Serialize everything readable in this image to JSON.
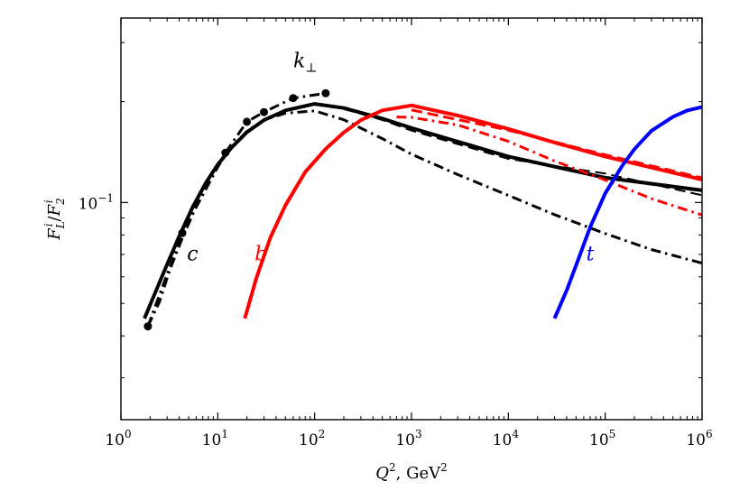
{
  "chart_data": {
    "type": "line",
    "xlabel": {
      "main": "Q",
      "sup": "2",
      "sep": ", GeV",
      "unit_sup": "2"
    },
    "ylabel": {
      "num": "F",
      "num_sub": "L",
      "num_sup": "i",
      "slash": "/",
      "den": "F",
      "den_sub": "2",
      "den_sup": "i"
    },
    "x_scale": "log",
    "y_scale": "log",
    "xlim": [
      1,
      1000000
    ],
    "ylim": [
      0.0225,
      0.355
    ],
    "grid": false,
    "legend": "none",
    "x_ticks": [
      {
        "value": 1,
        "base": "10",
        "exp": "0"
      },
      {
        "value": 10,
        "base": "10",
        "exp": "1"
      },
      {
        "value": 100,
        "base": "10",
        "exp": "2"
      },
      {
        "value": 1000,
        "base": "10",
        "exp": "3"
      },
      {
        "value": 10000,
        "base": "10",
        "exp": "4"
      },
      {
        "value": 100000,
        "base": "10",
        "exp": "5"
      },
      {
        "value": 1000000,
        "base": "10",
        "exp": "6"
      }
    ],
    "y_ticks": [
      {
        "value": 0.1,
        "base": "10",
        "exp": "−1"
      }
    ],
    "annotations": [
      {
        "text": "c",
        "x": 5.5,
        "y": 0.0706,
        "color": "#000000"
      },
      {
        "text": "b",
        "x": 28,
        "y": 0.0706,
        "color": "#ff0000"
      },
      {
        "text": "t",
        "x": 70000,
        "y": 0.0706,
        "color": "#0000ff"
      },
      {
        "text": "k",
        "sub": "⊥",
        "x": 80,
        "y": 0.266,
        "color": "#000000"
      }
    ],
    "series": [
      {
        "color": "#000000",
        "style": "solid",
        "width": 4,
        "x": [
          1.75,
          2.2,
          3,
          4,
          5.5,
          7.5,
          10,
          14,
          20,
          30,
          50,
          100,
          200,
          500,
          1000,
          10000,
          100000,
          1000000
        ],
        "y": [
          0.0451,
          0.0529,
          0.0654,
          0.0793,
          0.0969,
          0.1142,
          0.1298,
          0.1462,
          0.1621,
          0.1761,
          0.1883,
          0.1969,
          0.1913,
          0.178,
          0.1668,
          0.1372,
          0.1186,
          0.1087
        ]
      },
      {
        "color": "#000000",
        "style": "dashed",
        "width": 2,
        "x": [
          200,
          500,
          1000,
          10000,
          100000,
          1000000
        ],
        "y": [
          0.19,
          0.1763,
          0.1639,
          0.135,
          0.122,
          0.1051
        ]
      },
      {
        "color": "#000000",
        "style": "dashdot",
        "width": 3,
        "x": [
          1.9,
          2.5,
          3.2,
          4.3,
          6,
          9,
          13,
          20,
          30,
          50,
          100,
          200,
          500,
          1000,
          3000,
          10000,
          30000,
          100000,
          300000,
          1000000
        ],
        "y": [
          0.0427,
          0.0505,
          0.063,
          0.0782,
          0.0975,
          0.122,
          0.1434,
          0.1631,
          0.1764,
          0.1847,
          0.1877,
          0.1765,
          0.1551,
          0.1393,
          0.1212,
          0.105,
          0.092,
          0.0808,
          0.0724,
          0.0659
        ]
      },
      {
        "color": "#000000",
        "style": "dashdot",
        "width": 3,
        "markers": true,
        "x": [
          1.9,
          4.3,
          12,
          20,
          30,
          60,
          130
        ],
        "y": [
          0.0427,
          0.0811,
          0.1408,
          0.1741,
          0.1861,
          0.2049,
          0.2118
        ]
      },
      {
        "color": "#ff0000",
        "style": "solid",
        "width": 4,
        "x": [
          19,
          25,
          35,
          50,
          80,
          130,
          200,
          300,
          500,
          1000,
          3000,
          10000,
          30000,
          100000,
          1000000
        ],
        "y": [
          0.0451,
          0.0594,
          0.0787,
          0.0982,
          0.1234,
          0.1445,
          0.1619,
          0.1761,
          0.1883,
          0.1948,
          0.1817,
          0.1658,
          0.151,
          0.1372,
          0.117
        ]
      },
      {
        "color": "#ff0000",
        "style": "dashed",
        "width": 3,
        "x": [
          1000,
          10000,
          100000,
          1000000
        ],
        "y": [
          0.1888,
          0.1644,
          0.1387,
          0.1184
        ]
      },
      {
        "color": "#ff0000",
        "style": "dashdot",
        "width": 3,
        "x": [
          700,
          1000,
          3000,
          10000,
          30000,
          100000,
          300000,
          1000000
        ],
        "y": [
          0.18,
          0.1795,
          0.1703,
          0.1522,
          0.133,
          0.1167,
          0.1027,
          0.0918
        ]
      },
      {
        "color": "#0000ff",
        "style": "solid",
        "width": 4,
        "x": [
          30000,
          40000,
          50000,
          70000,
          100000,
          150000,
          200000,
          300000,
          500000,
          700000,
          1000000
        ],
        "y": [
          0.0451,
          0.0547,
          0.065,
          0.0844,
          0.1065,
          0.1288,
          0.1442,
          0.1637,
          0.1802,
          0.188,
          0.1927
        ]
      }
    ]
  }
}
